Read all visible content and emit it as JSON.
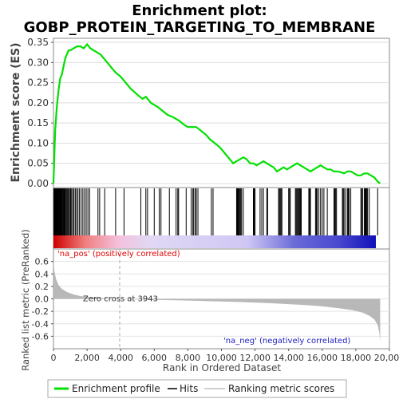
{
  "chart_data": {
    "type": "line",
    "title": "Enrichment plot:",
    "subtitle": "GOBP_PROTEIN_TARGETING_TO_MEMBRANE",
    "es_panel": {
      "ylabel": "Enrichment score (ES)",
      "ylim": [
        -0.01,
        0.36
      ],
      "yticks": [
        "0.00",
        "0.05",
        "0.10",
        "0.15",
        "0.20",
        "0.25",
        "0.30",
        "0.35"
      ],
      "ytick_values": [
        0.0,
        0.05,
        0.1,
        0.15,
        0.2,
        0.25,
        0.3,
        0.35
      ],
      "series": {
        "name": "Enrichment profile",
        "color": "#00e000",
        "x": [
          0,
          100,
          200,
          300,
          400,
          500,
          600,
          700,
          800,
          900,
          1000,
          1200,
          1400,
          1600,
          1800,
          2000,
          2100,
          2200,
          2400,
          2600,
          2800,
          3000,
          3200,
          3400,
          3700,
          4000,
          4300,
          4600,
          5000,
          5300,
          5500,
          5800,
          6000,
          6200,
          6500,
          6800,
          7100,
          7300,
          7500,
          7800,
          8000,
          8300,
          8500,
          8800,
          9100,
          9300,
          9600,
          9900,
          10200,
          10500,
          10700,
          10900,
          11100,
          11300,
          11500,
          11700,
          11900,
          12100,
          12300,
          12500,
          12700,
          12900,
          13100,
          13300,
          13500,
          13700,
          13900,
          14100,
          14300,
          14500,
          14700,
          14900,
          15100,
          15300,
          15500,
          15700,
          15900,
          16100,
          16300,
          16500,
          16700,
          16900,
          17100,
          17300,
          17500,
          17700,
          17900,
          18100,
          18300,
          18500,
          18700,
          18900,
          19100,
          19300,
          19450
        ],
        "y": [
          0.0,
          0.13,
          0.19,
          0.23,
          0.26,
          0.27,
          0.29,
          0.31,
          0.32,
          0.33,
          0.33,
          0.335,
          0.34,
          0.34,
          0.335,
          0.345,
          0.34,
          0.335,
          0.33,
          0.325,
          0.32,
          0.31,
          0.3,
          0.29,
          0.275,
          0.265,
          0.25,
          0.235,
          0.22,
          0.21,
          0.215,
          0.2,
          0.195,
          0.19,
          0.18,
          0.17,
          0.165,
          0.16,
          0.155,
          0.145,
          0.14,
          0.14,
          0.14,
          0.13,
          0.12,
          0.11,
          0.1,
          0.09,
          0.075,
          0.06,
          0.05,
          0.055,
          0.06,
          0.065,
          0.06,
          0.05,
          0.05,
          0.045,
          0.05,
          0.055,
          0.05,
          0.045,
          0.04,
          0.03,
          0.035,
          0.04,
          0.035,
          0.04,
          0.045,
          0.05,
          0.045,
          0.04,
          0.035,
          0.03,
          0.035,
          0.04,
          0.045,
          0.04,
          0.035,
          0.035,
          0.03,
          0.03,
          0.028,
          0.025,
          0.03,
          0.03,
          0.025,
          0.02,
          0.02,
          0.025,
          0.025,
          0.02,
          0.015,
          0.005,
          0.0
        ]
      }
    },
    "hits_panel": {
      "label": "Hits",
      "hit_positions": [
        20,
        40,
        60,
        80,
        100,
        130,
        160,
        190,
        220,
        250,
        280,
        310,
        340,
        370,
        400,
        430,
        460,
        500,
        540,
        580,
        620,
        660,
        700,
        750,
        800,
        850,
        900,
        960,
        1020,
        1080,
        1150,
        1220,
        1300,
        1380,
        1460,
        1550,
        1650,
        1750,
        1850,
        1950,
        2050,
        2150,
        2650,
        2750,
        3050,
        3700,
        4200,
        5200,
        5500,
        5600,
        6000,
        6300,
        6400,
        6900,
        7300,
        7400,
        7450,
        7900,
        8200,
        8300,
        8350,
        8450,
        8500,
        8600,
        9400,
        9500,
        10900,
        10950,
        11000,
        11050,
        11100,
        11150,
        11200,
        11300,
        11900,
        11950,
        12000,
        12300,
        12400,
        12500,
        12700,
        12750,
        13400,
        13450,
        13500,
        13550,
        13600,
        14000,
        14050,
        14100,
        14400,
        14450,
        14500,
        14550,
        14600,
        14650,
        14700,
        14750,
        15200,
        15250,
        15300,
        15600,
        15650,
        15700,
        15800,
        15900,
        16000,
        16100,
        16300,
        16700,
        16750,
        16800,
        16850,
        17200,
        17250,
        17300,
        17400,
        17500,
        17550,
        17600,
        17700,
        18300,
        18350,
        18400,
        18500,
        18550,
        18600,
        18650,
        18700,
        18800,
        19300
      ]
    },
    "rank_panel": {
      "ylabel": "Ranked list metric (PreRanked)",
      "xlabel": "Rank in Ordered Dataset",
      "ylim": [
        -0.8,
        0.8
      ],
      "yticks": [
        "0.6",
        "0.4",
        "0.2",
        "0.0",
        "-0.2",
        "-0.4",
        "-0.6"
      ],
      "ytick_values": [
        0.6,
        0.4,
        0.2,
        0.0,
        -0.2,
        -0.4,
        -0.6
      ],
      "xlim": [
        0,
        20000
      ],
      "xticks": [
        "0",
        "2,000",
        "4,000",
        "6,000",
        "8,000",
        "10,000",
        "12,000",
        "14,000",
        "16,000",
        "18,000",
        "20,000"
      ],
      "xtick_values": [
        0,
        2000,
        4000,
        6000,
        8000,
        10000,
        12000,
        14000,
        16000,
        18000,
        20000
      ],
      "zero_cross_label": "Zero cross at 3943",
      "zero_cross": 3943,
      "pos_label": "'na_pos' (positively correlated)",
      "neg_label": "'na_neg' (negatively correlated)",
      "metric_x": [
        0,
        50,
        150,
        300,
        500,
        800,
        1200,
        1600,
        2000,
        2500,
        3000,
        3500,
        3943,
        5000,
        7000,
        9000,
        11000,
        13000,
        15000,
        16000,
        17000,
        17800,
        18400,
        18800,
        19100,
        19300,
        19400,
        19450
      ],
      "metric_y": [
        0.62,
        0.45,
        0.32,
        0.22,
        0.16,
        0.11,
        0.07,
        0.045,
        0.03,
        0.02,
        0.012,
        0.005,
        0.0,
        -0.01,
        -0.02,
        -0.035,
        -0.05,
        -0.07,
        -0.1,
        -0.12,
        -0.15,
        -0.18,
        -0.22,
        -0.27,
        -0.33,
        -0.42,
        -0.55,
        -0.68
      ]
    },
    "legend": {
      "placement": "bottom",
      "entries": [
        "Enrichment profile",
        "Hits",
        "Ranking metric scores"
      ]
    },
    "colors": {
      "es_line": "#00e000",
      "hit_line": "#000000",
      "metric_fill": "#b8b8b8",
      "pos_text": "#e00000",
      "neg_text": "#2020c0",
      "heat_pos": "#e00000",
      "heat_mid": "#ffffff",
      "heat_neg": "#1010c0"
    }
  }
}
